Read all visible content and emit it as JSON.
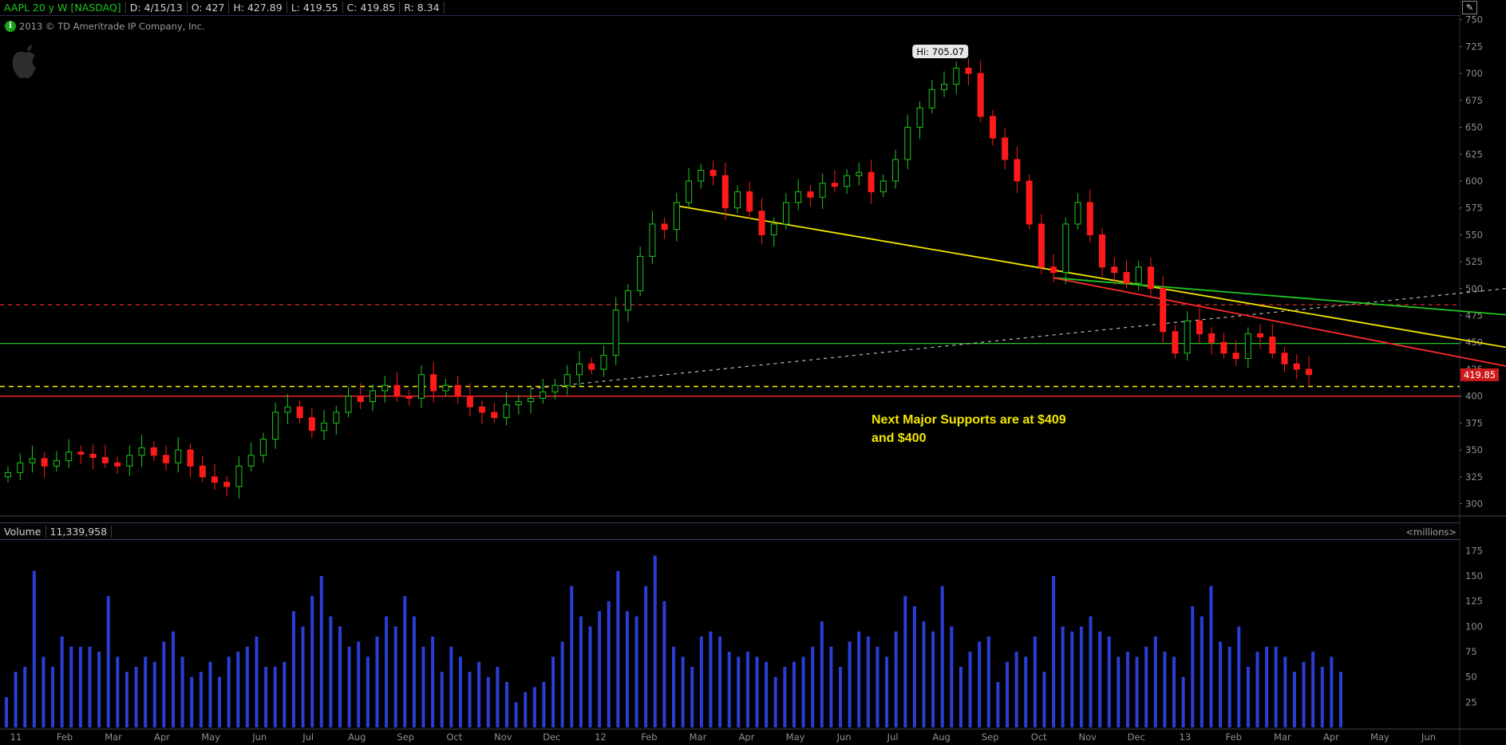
{
  "header": {
    "symbol": "AAPL 20 y W [NASDAQ]",
    "date": "D: 4/15/13",
    "open": "O: 427",
    "high": "H: 427.89",
    "low": "L: 419.55",
    "close": "C: 419.85",
    "range": "R: 8.34"
  },
  "copyright": "2013 © TD Ameritrade IP Company, Inc.",
  "annotation_lines": [
    "Next Major Supports are at $409",
    "and $400"
  ],
  "volume_header": {
    "label": "Volume",
    "value": "11,339,958"
  },
  "volume_unit": "<millions>",
  "colors": {
    "up": "#1ec81e",
    "down": "#ff1a1a",
    "volume": "#2a3ed6",
    "support": "#f2e600",
    "resistance": "#ff2a2a",
    "mid": "#1ec81e"
  },
  "chart_data": [
    {
      "type": "candlestick",
      "title": "AAPL 20 y W [NASDAQ]",
      "y_ticks": [
        300,
        325,
        350,
        375,
        400,
        425,
        450,
        475,
        500,
        525,
        550,
        575,
        600,
        625,
        650,
        675,
        700,
        725,
        750
      ],
      "ylim": [
        290,
        752
      ],
      "x_labels": [
        "11",
        "Feb",
        "Mar",
        "Apr",
        "May",
        "Jun",
        "Jul",
        "Aug",
        "Sep",
        "Oct",
        "Nov",
        "Dec",
        "12",
        "Feb",
        "Mar",
        "Apr",
        "May",
        "Jun",
        "Jul",
        "Aug",
        "Sep",
        "Oct",
        "Nov",
        "Dec",
        "13",
        "Feb",
        "Mar",
        "Apr",
        "May",
        "Jun"
      ],
      "high_label": "Hi: 705.07",
      "last_label": "419.85",
      "closes": [
        329,
        338,
        342,
        335,
        340,
        348,
        346,
        343,
        338,
        335,
        345,
        352,
        345,
        338,
        350,
        335,
        325,
        320,
        316,
        335,
        345,
        360,
        385,
        390,
        380,
        368,
        375,
        385,
        400,
        395,
        405,
        410,
        400,
        398,
        420,
        405,
        410,
        400,
        390,
        385,
        380,
        392,
        395,
        398,
        404,
        410,
        420,
        430,
        425,
        438,
        480,
        498,
        530,
        560,
        555,
        580,
        600,
        610,
        605,
        575,
        590,
        572,
        550,
        560,
        580,
        590,
        585,
        598,
        595,
        605,
        608,
        590,
        600,
        620,
        650,
        668,
        685,
        690,
        705,
        700,
        660,
        640,
        620,
        600,
        560,
        520,
        515,
        560,
        580,
        550,
        520,
        515,
        505,
        520,
        500,
        460,
        440,
        470,
        458,
        450,
        440,
        435,
        458,
        455,
        440,
        430,
        425,
        420
      ]
    },
    {
      "type": "bar",
      "title": "Volume",
      "ylabel": "<millions>",
      "y_ticks": [
        25,
        50,
        75,
        100,
        125,
        150,
        175
      ],
      "ylim": [
        0,
        180
      ],
      "values": [
        30,
        55,
        60,
        155,
        70,
        60,
        90,
        80,
        80,
        80,
        75,
        130,
        70,
        55,
        60,
        70,
        65,
        85,
        95,
        70,
        50,
        55,
        65,
        50,
        70,
        75,
        80,
        90,
        60,
        60,
        65,
        115,
        100,
        130,
        150,
        110,
        100,
        80,
        85,
        70,
        90,
        110,
        100,
        130,
        110,
        80,
        90,
        55,
        80,
        70,
        55,
        65,
        50,
        60,
        45,
        25,
        35,
        40,
        45,
        70,
        85,
        140,
        110,
        100,
        115,
        125,
        155,
        115,
        110,
        140,
        170,
        125,
        80,
        70,
        60,
        90,
        95,
        90,
        75,
        70,
        75,
        70,
        65,
        50,
        60,
        65,
        70,
        80,
        105,
        80,
        60,
        85,
        95,
        90,
        80,
        70,
        95,
        130,
        120,
        105,
        95,
        140,
        100,
        60,
        75,
        85,
        90,
        45,
        65,
        75,
        70,
        90,
        55,
        150,
        100,
        95,
        100,
        110,
        95,
        90,
        70,
        75,
        70,
        80,
        90,
        75,
        70,
        50,
        120,
        110,
        140,
        85,
        80,
        100,
        60,
        75,
        80,
        80,
        70,
        55,
        65,
        75,
        60,
        70,
        55
      ]
    }
  ]
}
